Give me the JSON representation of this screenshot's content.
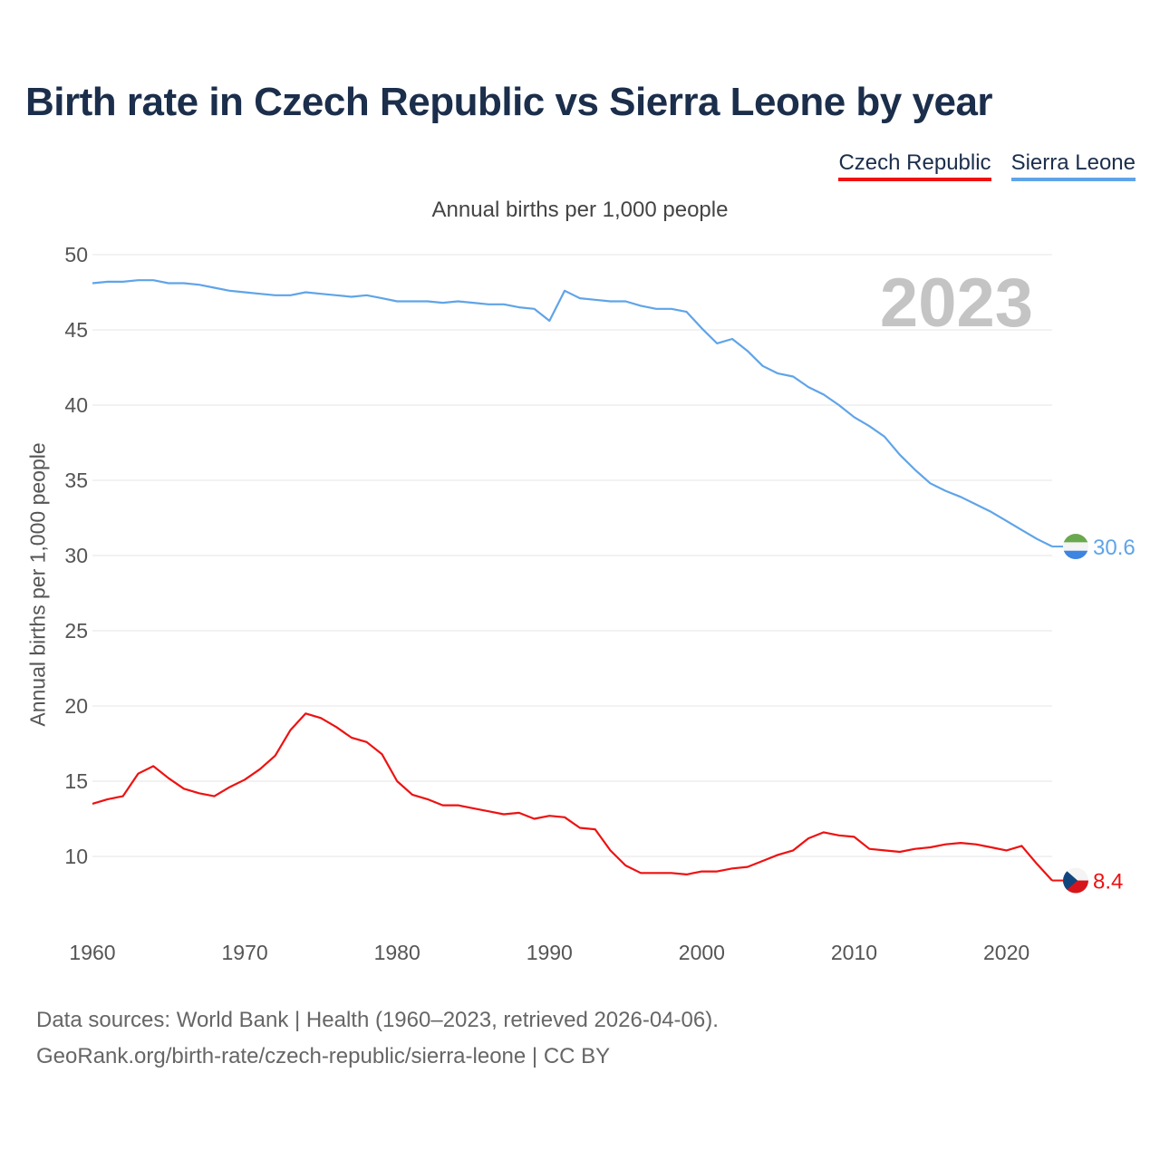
{
  "title": "Birth rate in Czech Republic vs Sierra Leone by year",
  "subtitle": "Annual births per 1,000 people",
  "legend": [
    {
      "label": "Czech Republic",
      "color": "#ee1111"
    },
    {
      "label": "Sierra Leone",
      "color": "#5fa4e8"
    }
  ],
  "source": {
    "line1": "Data sources: World Bank | Health (1960–2023, retrieved 2026-04-06).",
    "line2": "GeoRank.org/birth-rate/czech-republic/sierra-leone | CC BY"
  },
  "chart_data": {
    "type": "line",
    "title": "Birth rate in Czech Republic vs Sierra Leone by year",
    "xlabel": "",
    "ylabel": "Annual births per 1,000 people",
    "xlim": [
      1960,
      2023
    ],
    "ylim": [
      5,
      50
    ],
    "yticks": [
      10,
      15,
      20,
      25,
      30,
      35,
      40,
      45,
      50
    ],
    "xticks": [
      1960,
      1970,
      1980,
      1990,
      2000,
      2010,
      2020
    ],
    "grid": true,
    "watermark_year": "2023",
    "x": [
      1960,
      1961,
      1962,
      1963,
      1964,
      1965,
      1966,
      1967,
      1968,
      1969,
      1970,
      1971,
      1972,
      1973,
      1974,
      1975,
      1976,
      1977,
      1978,
      1979,
      1980,
      1981,
      1982,
      1983,
      1984,
      1985,
      1986,
      1987,
      1988,
      1989,
      1990,
      1991,
      1992,
      1993,
      1994,
      1995,
      1996,
      1997,
      1998,
      1999,
      2000,
      2001,
      2002,
      2003,
      2004,
      2005,
      2006,
      2007,
      2008,
      2009,
      2010,
      2011,
      2012,
      2013,
      2014,
      2015,
      2016,
      2017,
      2018,
      2019,
      2020,
      2021,
      2022,
      2023
    ],
    "series": [
      {
        "name": "Sierra Leone",
        "color": "#5fa4e8",
        "end_label": "30.6",
        "values": [
          48.1,
          48.2,
          48.2,
          48.3,
          48.3,
          48.1,
          48.1,
          48.0,
          47.8,
          47.6,
          47.5,
          47.4,
          47.3,
          47.3,
          47.5,
          47.4,
          47.3,
          47.2,
          47.3,
          47.1,
          46.9,
          46.9,
          46.9,
          46.8,
          46.9,
          46.8,
          46.7,
          46.7,
          46.5,
          46.4,
          45.6,
          47.6,
          47.1,
          47.0,
          46.9,
          46.9,
          46.6,
          46.4,
          46.4,
          46.2,
          45.1,
          44.1,
          44.4,
          43.6,
          42.6,
          42.1,
          41.9,
          41.2,
          40.7,
          40.0,
          39.2,
          38.6,
          37.9,
          36.7,
          35.7,
          34.8,
          34.3,
          33.9,
          33.4,
          32.9,
          32.3,
          31.7,
          31.1,
          30.6
        ]
      },
      {
        "name": "Czech Republic",
        "color": "#ee1111",
        "end_label": "8.4",
        "values": [
          13.5,
          13.8,
          14.0,
          15.5,
          16.0,
          15.2,
          14.5,
          14.2,
          14.0,
          14.6,
          15.1,
          15.8,
          16.7,
          18.4,
          19.5,
          19.2,
          18.6,
          17.9,
          17.6,
          16.8,
          15.0,
          14.1,
          13.8,
          13.4,
          13.4,
          13.2,
          13.0,
          12.8,
          12.9,
          12.5,
          12.7,
          12.6,
          11.9,
          11.8,
          10.4,
          9.4,
          8.9,
          8.9,
          8.9,
          8.8,
          9.0,
          9.0,
          9.2,
          9.3,
          9.7,
          10.1,
          10.4,
          11.2,
          11.6,
          11.4,
          11.3,
          10.5,
          10.4,
          10.3,
          10.5,
          10.6,
          10.8,
          10.9,
          10.8,
          10.6,
          10.4,
          10.7,
          9.5,
          8.4
        ]
      }
    ]
  }
}
